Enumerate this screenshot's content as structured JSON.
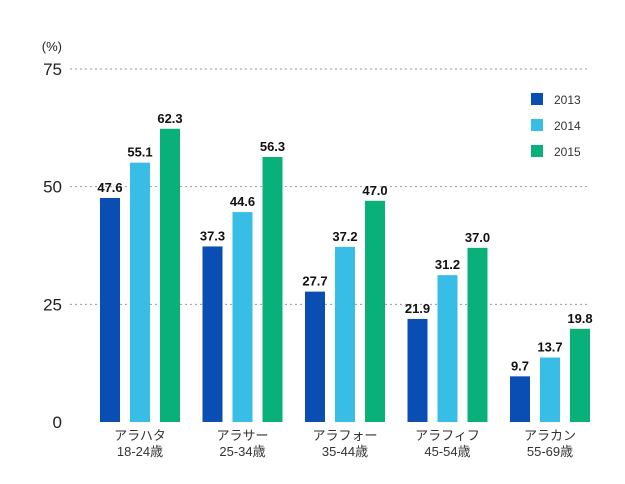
{
  "chart_data": {
    "type": "bar",
    "unit": "(%)",
    "categories": [
      [
        "アラハタ",
        "18-24歳"
      ],
      [
        "アラサー",
        "25-34歳"
      ],
      [
        "アラフォー",
        "35-44歳"
      ],
      [
        "アラフィフ",
        "45-54歳"
      ],
      [
        "アラカン",
        "55-69歳"
      ]
    ],
    "series": [
      {
        "name": "2013",
        "color": "#0a4db3",
        "values": [
          47.6,
          37.3,
          27.7,
          21.9,
          9.7
        ]
      },
      {
        "name": "2014",
        "color": "#37bde6",
        "values": [
          55.1,
          44.6,
          37.2,
          31.2,
          13.7
        ]
      },
      {
        "name": "2015",
        "color": "#0ab07a",
        "values": [
          62.3,
          56.3,
          47.0,
          37.0,
          19.8
        ]
      }
    ],
    "value_labels": [
      [
        "47.6",
        "55.1",
        "62.3"
      ],
      [
        "37.3",
        "44.6",
        "56.3"
      ],
      [
        "27.7",
        "37.2",
        "47.0"
      ],
      [
        "21.9",
        "31.2",
        "37.0"
      ],
      [
        "9.7",
        "13.7",
        "19.8"
      ]
    ],
    "y_ticks": [
      "0",
      "25",
      "50",
      "75"
    ],
    "ylim": [
      0,
      75
    ],
    "grid": true,
    "legend_position": "top-right"
  }
}
